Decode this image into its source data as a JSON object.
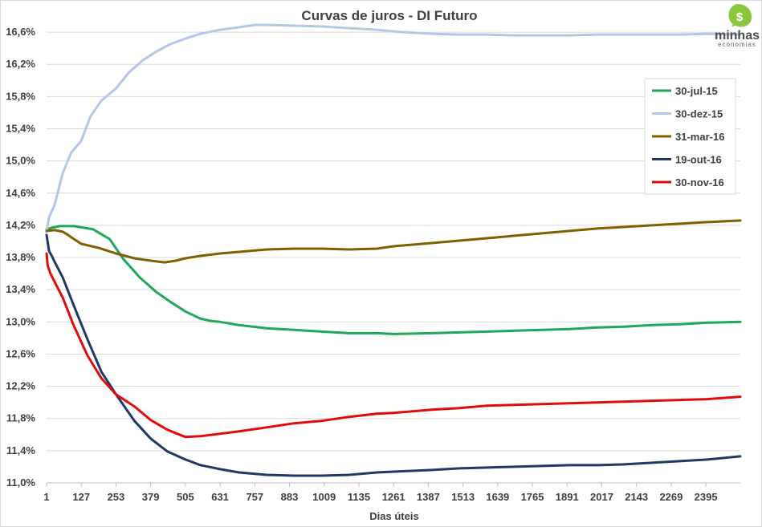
{
  "brand": {
    "name": "minhas",
    "sub": "economias",
    "icon": "dollar-leaf-icon",
    "color": "#8cc63f"
  },
  "chart_data": {
    "type": "line",
    "title": "Curvas de juros - DI Futuro",
    "xlabel": "Dias úteis",
    "ylabel": "",
    "xlim": [
      1,
      2520
    ],
    "ylim": [
      11.0,
      16.8
    ],
    "x_ticks": [
      "1",
      "127",
      "253",
      "379",
      "505",
      "631",
      "757",
      "883",
      "1009",
      "1135",
      "1261",
      "1387",
      "1513",
      "1639",
      "1765",
      "1891",
      "2017",
      "2143",
      "2269",
      "2395"
    ],
    "y_ticks": [
      "11,0%",
      "11,4%",
      "11,8%",
      "12,2%",
      "12,6%",
      "13,0%",
      "13,4%",
      "13,8%",
      "14,2%",
      "14,6%",
      "15,0%",
      "15,4%",
      "15,8%",
      "16,2%",
      "16,6%"
    ],
    "grid": "horizontal",
    "legend_position": "right",
    "series": [
      {
        "name": "30-jul-15",
        "color": "#1fa75a",
        "x": [
          1,
          20,
          50,
          100,
          170,
          230,
          280,
          340,
          400,
          450,
          505,
          560,
          600,
          631,
          700,
          800,
          900,
          1000,
          1100,
          1200,
          1261,
          1400,
          1500,
          1600,
          1700,
          1800,
          1900,
          2000,
          2100,
          2200,
          2300,
          2400,
          2520
        ],
        "y": [
          14.15,
          14.17,
          14.19,
          14.19,
          14.15,
          14.03,
          13.78,
          13.55,
          13.37,
          13.25,
          13.13,
          13.04,
          13.01,
          13.0,
          12.96,
          12.92,
          12.9,
          12.88,
          12.86,
          12.86,
          12.85,
          12.86,
          12.87,
          12.88,
          12.89,
          12.9,
          12.91,
          12.93,
          12.94,
          12.96,
          12.97,
          12.99,
          13.0
        ]
      },
      {
        "name": "30-dez-15",
        "color": "#b4c7e7",
        "x": [
          1,
          10,
          30,
          60,
          90,
          127,
          160,
          200,
          253,
          300,
          350,
          400,
          450,
          505,
          560,
          631,
          700,
          757,
          800,
          900,
          1000,
          1100,
          1200,
          1261,
          1300,
          1400,
          1500,
          1600,
          1700,
          1800,
          1900,
          2000,
          2100,
          2200,
          2300,
          2400,
          2520
        ],
        "y": [
          14.12,
          14.3,
          14.45,
          14.85,
          15.1,
          15.25,
          15.55,
          15.75,
          15.9,
          16.1,
          16.25,
          16.36,
          16.45,
          16.52,
          16.58,
          16.63,
          16.66,
          16.69,
          16.69,
          16.68,
          16.67,
          16.65,
          16.63,
          16.61,
          16.6,
          16.58,
          16.57,
          16.57,
          16.56,
          16.56,
          16.56,
          16.57,
          16.57,
          16.57,
          16.57,
          16.58,
          16.57
        ]
      },
      {
        "name": "31-mar-16",
        "color": "#7f6000",
        "x": [
          1,
          30,
          60,
          70,
          100,
          127,
          190,
          253,
          320,
          379,
          430,
          470,
          505,
          560,
          631,
          700,
          800,
          900,
          1000,
          1100,
          1200,
          1261,
          1400,
          1500,
          1600,
          1700,
          1800,
          1900,
          2000,
          2100,
          2200,
          2300,
          2400,
          2520
        ],
        "y": [
          14.13,
          14.14,
          14.12,
          14.1,
          14.03,
          13.97,
          13.92,
          13.85,
          13.79,
          13.76,
          13.74,
          13.76,
          13.79,
          13.82,
          13.85,
          13.87,
          13.9,
          13.91,
          13.91,
          13.9,
          13.91,
          13.94,
          13.98,
          14.01,
          14.04,
          14.07,
          14.1,
          14.13,
          14.16,
          14.18,
          14.2,
          14.22,
          14.24,
          14.26
        ]
      },
      {
        "name": "19-out-16",
        "color": "#1f3864",
        "x": [
          1,
          10,
          20,
          30,
          60,
          100,
          150,
          200,
          253,
          320,
          379,
          440,
          505,
          560,
          631,
          700,
          800,
          900,
          1000,
          1100,
          1200,
          1261,
          1400,
          1500,
          1600,
          1700,
          1800,
          1900,
          2000,
          2100,
          2200,
          2300,
          2400,
          2520
        ],
        "y": [
          14.08,
          13.88,
          13.82,
          13.75,
          13.55,
          13.2,
          12.78,
          12.38,
          12.1,
          11.77,
          11.55,
          11.39,
          11.29,
          11.22,
          11.17,
          11.13,
          11.1,
          11.09,
          11.09,
          11.1,
          11.13,
          11.14,
          11.16,
          11.18,
          11.19,
          11.2,
          11.21,
          11.22,
          11.22,
          11.23,
          11.25,
          11.27,
          11.29,
          11.33
        ]
      },
      {
        "name": "30-nov-16",
        "color": "#e00c0c",
        "x": [
          1,
          5,
          15,
          30,
          60,
          100,
          150,
          200,
          253,
          320,
          379,
          440,
          505,
          560,
          631,
          700,
          800,
          900,
          1000,
          1100,
          1200,
          1261,
          1400,
          1500,
          1600,
          1700,
          1800,
          1900,
          2000,
          2100,
          2200,
          2300,
          2400,
          2520
        ],
        "y": [
          13.85,
          13.7,
          13.6,
          13.5,
          13.3,
          12.95,
          12.58,
          12.3,
          12.1,
          11.95,
          11.78,
          11.66,
          11.57,
          11.58,
          11.61,
          11.64,
          11.69,
          11.74,
          11.77,
          11.82,
          11.86,
          11.87,
          11.91,
          11.93,
          11.96,
          11.97,
          11.98,
          11.99,
          12.0,
          12.01,
          12.02,
          12.03,
          12.04,
          12.07
        ]
      }
    ]
  }
}
